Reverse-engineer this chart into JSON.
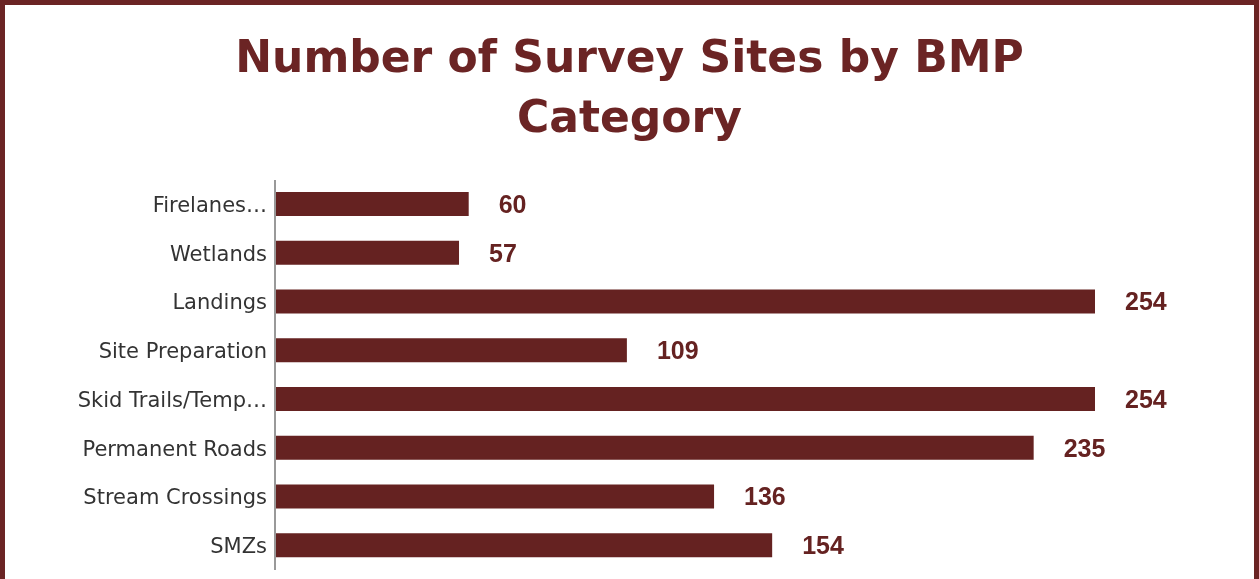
{
  "chart_data": {
    "type": "bar",
    "orientation": "horizontal",
    "title": "Number of Survey Sites by BMP Category",
    "categories": [
      "Firelanes…",
      "Wetlands",
      "Landings",
      "Site Preparation",
      "Skid Trails/Temp…",
      "Permanent Roads",
      "Stream Crossings",
      "SMZs"
    ],
    "values": [
      60,
      57,
      254,
      109,
      254,
      235,
      136,
      154
    ],
    "color": "#652221",
    "data_labels": true
  }
}
